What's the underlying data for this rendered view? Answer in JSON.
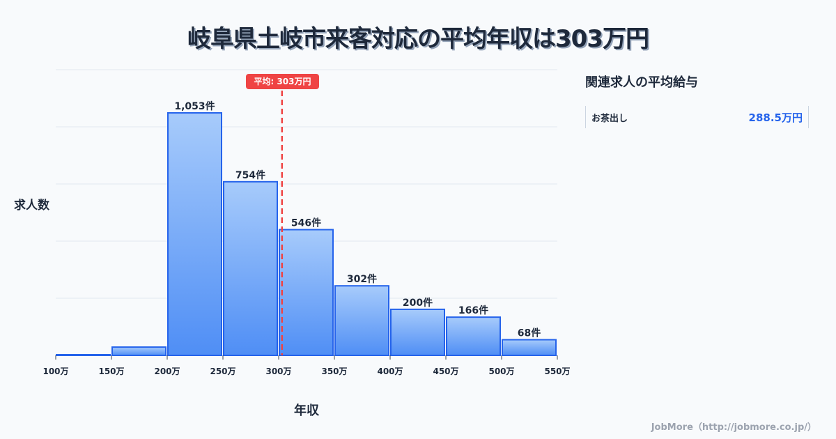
{
  "title": "岐阜県土岐市来客対応の平均年収は303万円",
  "average_badge": "平均: 303万円",
  "y_axis_label": "求人数",
  "x_axis_label": "年収",
  "side_panel": {
    "title": "関連求人の平均給与",
    "items": [
      {
        "label": "お茶出し",
        "value": "288.5万円"
      }
    ]
  },
  "footer": "JobMore（http://jobmore.co.jp/）",
  "colors": {
    "bar_top": "#a7cbfb",
    "bar_bottom": "#4f8ef5",
    "bar_border": "#2563eb",
    "average_line": "#ef4444",
    "accent": "#2563eb"
  },
  "chart_data": {
    "type": "bar",
    "title": "岐阜県土岐市来客対応の平均年収は303万円",
    "xlabel": "年収",
    "ylabel": "求人数",
    "x_ticks": [
      "100万",
      "150万",
      "200万",
      "250万",
      "300万",
      "350万",
      "400万",
      "450万",
      "500万",
      "550万"
    ],
    "categories": [
      "100-150万",
      "150-200万",
      "200-250万",
      "250-300万",
      "300-350万",
      "350-400万",
      "400-450万",
      "450-500万",
      "500-550万"
    ],
    "values": [
      3,
      36,
      1053,
      754,
      546,
      302,
      200,
      166,
      68
    ],
    "value_labels": [
      "",
      "",
      "1,053件",
      "754件",
      "546件",
      "302件",
      "200件",
      "166件",
      "68件"
    ],
    "average": 303,
    "average_label": "平均: 303万円",
    "grid": true,
    "ylim": [
      0,
      1250
    ]
  }
}
